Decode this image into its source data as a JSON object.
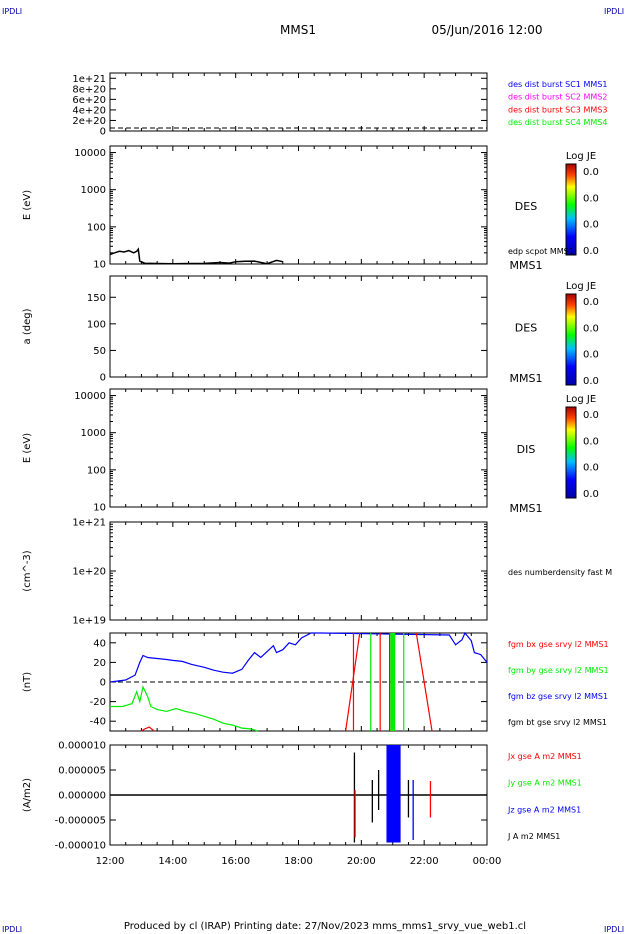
{
  "corner_marks": {
    "tl": "IPDLI",
    "tr": "IPDLI",
    "bl": "IPDLI",
    "br": "IPDLI"
  },
  "header": {
    "spacecraft": "MMS1",
    "date": "05/Jun/2016 12:00"
  },
  "footer": {
    "text": "Produced by cl (IRAP)   Printing date: 27/Nov/2023   mms_mms1_srvy_vue_web1.cl"
  },
  "colors": {
    "black": "#000000",
    "blue": "#0000ff",
    "red": "#ff0000",
    "green": "#00ee00",
    "magenta": "#ff00ff"
  },
  "chart_data": [
    {
      "type": "line",
      "panel": "spacecraft-distribution",
      "ylabel": "",
      "yticks": [
        "1e+21",
        "8e+20",
        "6e+20",
        "4e+20",
        "2e+20",
        "0"
      ],
      "ylim": [
        0,
        1.1e+21
      ],
      "reference_line": {
        "y": 0,
        "style": "dashed"
      },
      "legend": [
        {
          "text": "des dist burst SC1 MMS1",
          "color": "#0000ff"
        },
        {
          "text": "des dist burst SC2 MMS2",
          "color": "#ff00ff"
        },
        {
          "text": "des dist burst SC3 MMS3",
          "color": "#ff0000"
        },
        {
          "text": "des dist burst SC4 MMS4",
          "color": "#00ee00"
        }
      ]
    },
    {
      "type": "heatmap",
      "panel": "des-energy",
      "ylabel": "E (eV)",
      "yscale": "log",
      "yticks": [
        "10000",
        "1000",
        "100",
        "10"
      ],
      "ylim": [
        10,
        15000
      ],
      "label": "DES",
      "colorbar": {
        "title": "Log JE",
        "ticks": [
          "0.0",
          "0.0",
          "0.0",
          "0.0"
        ]
      },
      "overlay": {
        "name": "edp scpot MMS1",
        "color": "#000000",
        "points": [
          [
            12.0,
            18
          ],
          [
            12.15,
            20
          ],
          [
            12.3,
            22
          ],
          [
            12.45,
            21
          ],
          [
            12.6,
            23
          ],
          [
            12.75,
            20
          ],
          [
            12.85,
            22
          ],
          [
            12.9,
            25
          ],
          [
            12.95,
            12
          ],
          [
            13.1,
            10.5
          ],
          [
            13.5,
            10.3
          ],
          [
            14.0,
            10.2
          ],
          [
            14.5,
            10.3
          ],
          [
            15.0,
            10.4
          ],
          [
            15.5,
            11
          ],
          [
            15.8,
            10.6
          ],
          [
            16.0,
            11.5
          ],
          [
            16.3,
            11.8
          ],
          [
            16.6,
            12
          ],
          [
            17.0,
            10.2
          ],
          [
            17.3,
            12.5
          ],
          [
            17.5,
            11.5
          ]
        ]
      },
      "bottom_label": "MMS1"
    },
    {
      "type": "heatmap",
      "panel": "des-pitch",
      "ylabel": "a (deg)",
      "yticks": [
        "150",
        "100",
        "50",
        "0"
      ],
      "ylim": [
        0,
        190
      ],
      "label": "DES",
      "colorbar": {
        "title": "Log JE",
        "ticks": [
          "0.0",
          "0.0",
          "0.0",
          "0.0"
        ]
      },
      "bottom_label": "MMS1"
    },
    {
      "type": "heatmap",
      "panel": "dis-energy",
      "ylabel": "E (eV)",
      "yscale": "log",
      "yticks": [
        "10000",
        "1000",
        "100",
        "10"
      ],
      "ylim": [
        10,
        15000
      ],
      "label": "DIS",
      "colorbar": {
        "title": "Log JE",
        "ticks": [
          "0.0",
          "0.0",
          "0.0",
          "0.0"
        ]
      },
      "bottom_label": "MMS1"
    },
    {
      "type": "line",
      "panel": "density",
      "ylabel": "(cm^-3)",
      "yscale": "log",
      "yticks": [
        "1e+21",
        "1e+20",
        "1e+19"
      ],
      "ylim": [
        1e+19,
        1e+21
      ],
      "legend": [
        {
          "text": "des numberdensity fast M",
          "color": "#000000"
        }
      ]
    },
    {
      "type": "line",
      "panel": "magnetic-field",
      "ylabel": "(nT)",
      "yticks": [
        "40",
        "20",
        "0",
        "-20",
        "-40"
      ],
      "ylim": [
        -50,
        50
      ],
      "reference_line": {
        "y": 0,
        "style": "dashed"
      },
      "legend": [
        {
          "text": "fgm bx gse srvy l2 MMS1",
          "color": "#ff0000"
        },
        {
          "text": "fgm by gse srvy l2 MMS1",
          "color": "#00ee00"
        },
        {
          "text": "fgm bz gse srvy l2 MMS1",
          "color": "#0000ff"
        },
        {
          "text": "fgm bt gse srvy l2 MMS1",
          "color": "#000000"
        }
      ],
      "series": [
        {
          "name": "fgm bz gse srvy l2 MMS1",
          "color": "#0000ff",
          "points": [
            [
              12.0,
              0
            ],
            [
              12.5,
              2
            ],
            [
              12.8,
              7
            ],
            [
              12.95,
              20
            ],
            [
              13.05,
              27
            ],
            [
              13.2,
              25
            ],
            [
              13.5,
              24
            ],
            [
              13.8,
              23
            ],
            [
              14.0,
              22
            ],
            [
              14.3,
              21
            ],
            [
              14.6,
              18
            ],
            [
              15.0,
              15
            ],
            [
              15.3,
              12
            ],
            [
              15.6,
              10
            ],
            [
              15.9,
              9
            ],
            [
              16.2,
              13
            ],
            [
              16.4,
              22
            ],
            [
              16.6,
              30
            ],
            [
              16.8,
              25
            ],
            [
              17.0,
              31
            ],
            [
              17.2,
              37
            ],
            [
              17.3,
              30
            ],
            [
              17.5,
              33
            ],
            [
              17.7,
              40
            ],
            [
              17.9,
              38
            ],
            [
              18.1,
              45
            ],
            [
              18.4,
              50
            ],
            [
              18.7,
              55
            ],
            [
              22.8,
              48
            ],
            [
              23.0,
              38
            ],
            [
              23.2,
              43
            ],
            [
              23.3,
              50
            ],
            [
              23.5,
              42
            ],
            [
              23.6,
              30
            ],
            [
              23.8,
              28
            ],
            [
              24.0,
              20
            ]
          ]
        },
        {
          "name": "fgm by gse srvy l2 MMS1",
          "color": "#00ee00",
          "points": [
            [
              12.0,
              -25
            ],
            [
              12.4,
              -25
            ],
            [
              12.7,
              -22
            ],
            [
              12.85,
              -10
            ],
            [
              12.95,
              -20
            ],
            [
              13.05,
              -5
            ],
            [
              13.2,
              -15
            ],
            [
              13.3,
              -25
            ],
            [
              13.5,
              -28
            ],
            [
              13.8,
              -30
            ],
            [
              14.1,
              -27
            ],
            [
              14.4,
              -30
            ],
            [
              14.7,
              -32
            ],
            [
              15.0,
              -35
            ],
            [
              15.3,
              -38
            ],
            [
              15.6,
              -42
            ],
            [
              15.9,
              -44
            ],
            [
              16.2,
              -47
            ],
            [
              16.5,
              -48
            ],
            [
              16.7,
              -52
            ]
          ]
        },
        {
          "name": "fgm bx gse srvy l2 MMS1",
          "color": "#ff0000",
          "points": [
            [
              13.0,
              -55
            ],
            [
              13.1,
              -48
            ],
            [
              13.25,
              -46
            ],
            [
              13.4,
              -55
            ]
          ]
        }
      ],
      "verticals": [
        {
          "x": 19.75,
          "color": "#ff0000"
        },
        {
          "x": 20.3,
          "color": "#00ee00"
        },
        {
          "x": 20.6,
          "color": "#ff0000"
        },
        {
          "x": 20.9,
          "color": "#ff0000"
        },
        {
          "x": 21.0,
          "color": "#00ee00",
          "wide": true
        },
        {
          "x": 21.35,
          "color": "#00ee00"
        }
      ],
      "slopes": [
        {
          "x0": 19.5,
          "y0": -50,
          "x1": 19.95,
          "y1": 50,
          "color": "#ff0000"
        },
        {
          "x0": 21.75,
          "y0": 50,
          "x1": 22.25,
          "y1": -50,
          "color": "#ff0000"
        }
      ]
    },
    {
      "type": "line",
      "panel": "current-density",
      "ylabel": "(A/m2)",
      "yticks": [
        "0.000010",
        "0.000005",
        "0.000000",
        "-0.000005",
        "-0.000010"
      ],
      "ylim": [
        -1e-05,
        1e-05
      ],
      "legend": [
        {
          "text": "Jx gse A m2 MMS1",
          "color": "#ff0000"
        },
        {
          "text": "Jy gse A m2 MMS1",
          "color": "#00ee00"
        },
        {
          "text": "Jz gse A m2 MMS1",
          "color": "#0000ff"
        },
        {
          "text": "J A m2 MMS1",
          "color": "#000000"
        }
      ],
      "baseline": {
        "y": 0,
        "color": "#000000"
      },
      "spikes": [
        {
          "x": 19.78,
          "ymin": -9.5e-06,
          "ymax": 8.5e-06,
          "color": "#000000"
        },
        {
          "x": 19.8,
          "ymin": -8.5e-06,
          "ymax": 1e-06,
          "color": "#ff0000"
        },
        {
          "x": 20.35,
          "ymin": -5.5e-06,
          "ymax": 3e-06,
          "color": "#000000"
        },
        {
          "x": 20.55,
          "ymin": -3e-06,
          "ymax": 5e-06,
          "color": "#000000"
        },
        {
          "x": 21.5,
          "ymin": -4.5e-06,
          "ymax": 3e-06,
          "color": "#000000"
        },
        {
          "x": 21.65,
          "ymin": -9e-06,
          "ymax": 3e-06,
          "color": "#0000ff"
        },
        {
          "x": 22.2,
          "ymin": -4.5e-06,
          "ymax": 2.8e-06,
          "color": "#ff0000"
        }
      ],
      "block": {
        "x0": 20.8,
        "x1": 21.25,
        "ymin": -9.5e-06,
        "ymax": 1e-05,
        "color": "#0000ff"
      }
    }
  ],
  "x_axis": {
    "ticks": [
      "12:00",
      "14:00",
      "16:00",
      "18:00",
      "20:00",
      "22:00",
      "00:00"
    ],
    "xlim": [
      12,
      24
    ]
  }
}
